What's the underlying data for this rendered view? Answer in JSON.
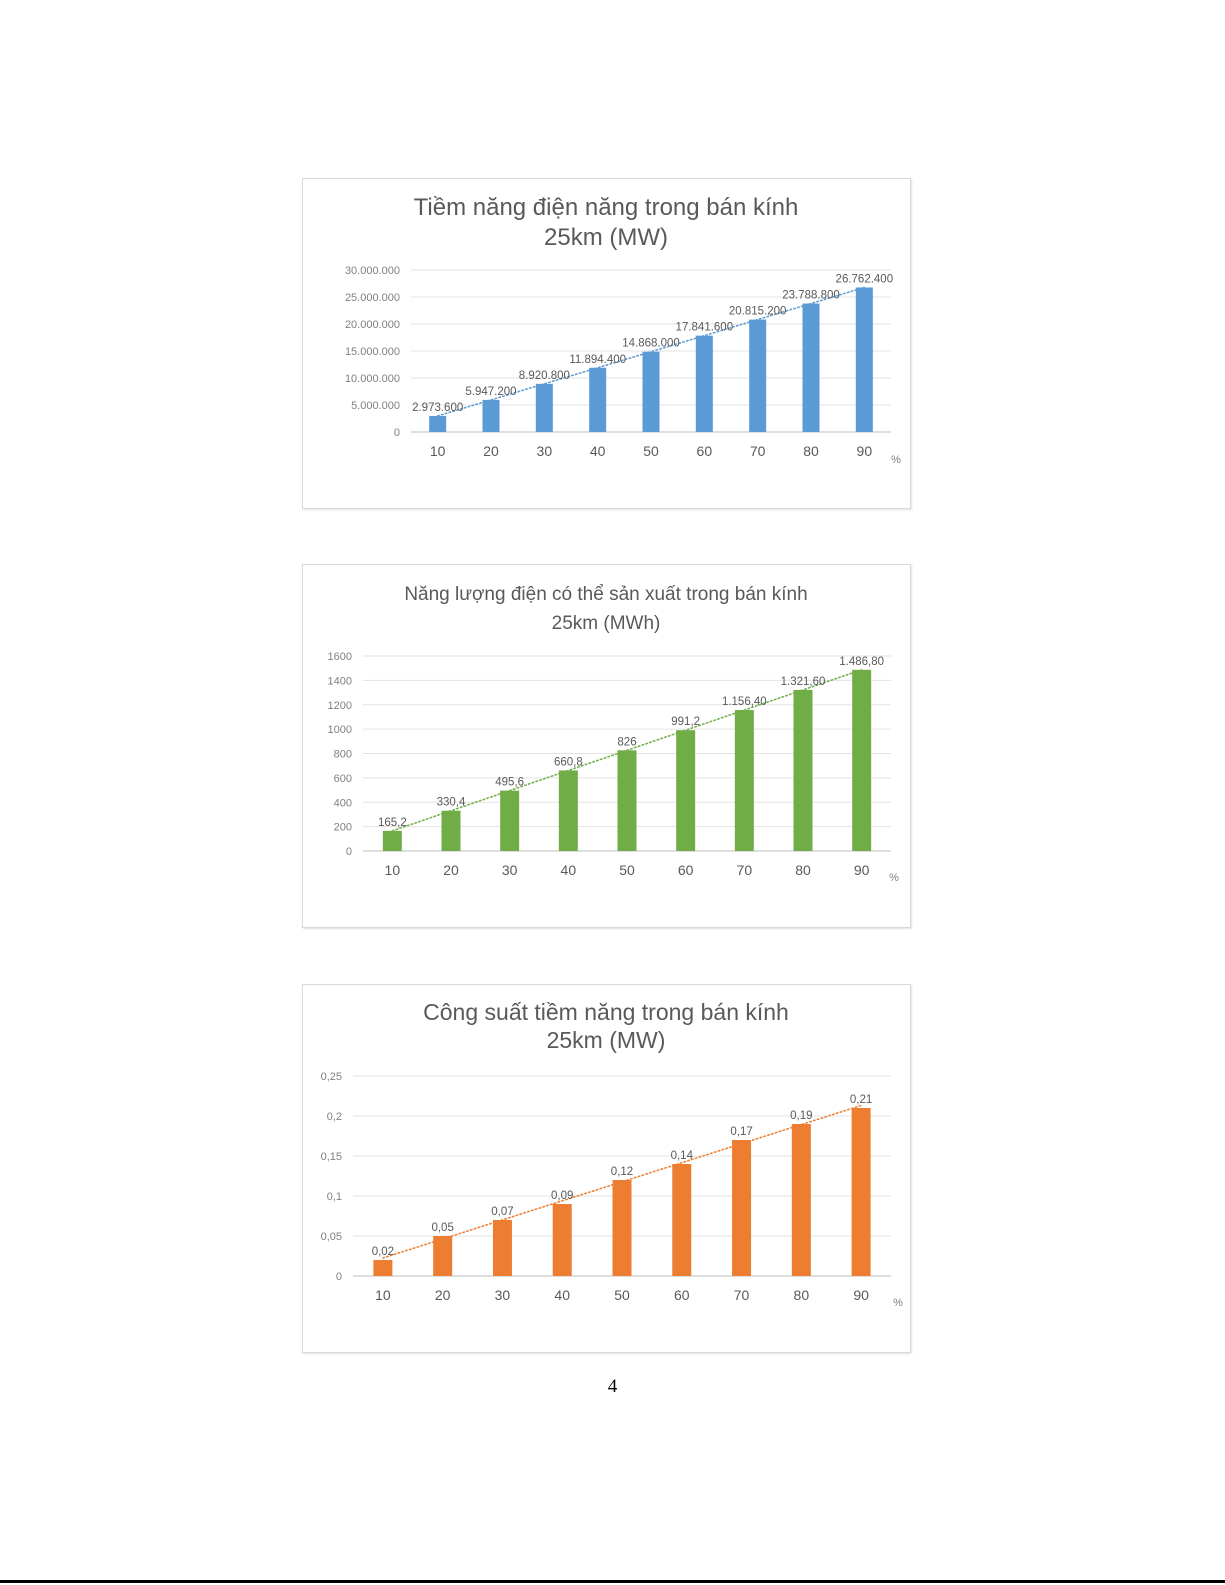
{
  "page_number": "4",
  "chart_data": [
    {
      "type": "bar",
      "title_lines": [
        "Tiềm năng điện năng  trong bán kính",
        "25km (MW)"
      ],
      "xlabel": "%",
      "categories": [
        "10",
        "20",
        "30",
        "40",
        "50",
        "60",
        "70",
        "80",
        "90"
      ],
      "values": [
        2973600,
        5947200,
        8920800,
        11894400,
        14868000,
        17841600,
        20815200,
        23788800,
        26762400
      ],
      "data_labels": [
        "2.973.600",
        "5.947.200",
        "8.920.800",
        "11.894.400",
        "14.868.000",
        "17.841.600",
        "20.815.200",
        "23.788.800",
        "26.762.400"
      ],
      "ylim": [
        0,
        30000000
      ],
      "yticks": [
        0,
        5000000,
        10000000,
        15000000,
        20000000,
        25000000,
        30000000
      ],
      "ytick_labels": [
        "0",
        "5.000.000",
        "10.000.000",
        "15.000.000",
        "20.000.000",
        "25.000.000",
        "30.000.000"
      ],
      "color": "#5b9bd5",
      "trendline": "linear",
      "grid": true
    },
    {
      "type": "bar",
      "title_lines": [
        "Năng lượng điện có thể sản xuất trong bán kính",
        "25km (MWh)"
      ],
      "xlabel": "%",
      "categories": [
        "10",
        "20",
        "30",
        "40",
        "50",
        "60",
        "70",
        "80",
        "90"
      ],
      "values": [
        165.2,
        330.4,
        495.6,
        660.8,
        826,
        991.2,
        1156.4,
        1321.6,
        1486.8
      ],
      "data_labels": [
        "165,2",
        "330,4",
        "495,6",
        "660,8",
        "826",
        "991,2",
        "1.156,40",
        "1.321,60",
        "1.486,80"
      ],
      "ylim": [
        0,
        1600
      ],
      "yticks": [
        0,
        200,
        400,
        600,
        800,
        1000,
        1200,
        1400,
        1600
      ],
      "ytick_labels": [
        "0",
        "200",
        "400",
        "600",
        "800",
        "1000",
        "1200",
        "1400",
        "1600"
      ],
      "color": "#70ad47",
      "trendline": "linear",
      "grid": true
    },
    {
      "type": "bar",
      "title_lines": [
        "Công suất tiềm năng trong bán kính",
        "25km (MW)"
      ],
      "xlabel": "%",
      "categories": [
        "10",
        "20",
        "30",
        "40",
        "50",
        "60",
        "70",
        "80",
        "90"
      ],
      "values": [
        0.02,
        0.05,
        0.07,
        0.09,
        0.12,
        0.14,
        0.17,
        0.19,
        0.21
      ],
      "data_labels": [
        "0,02",
        "0,05",
        "0,07",
        "0,09",
        "0,12",
        "0,14",
        "0,17",
        "0,19",
        "0,21"
      ],
      "ylim": [
        0,
        0.25
      ],
      "yticks": [
        0,
        0.05,
        0.1,
        0.15,
        0.2,
        0.25
      ],
      "ytick_labels": [
        "0",
        "0,05",
        "0,1",
        "0,15",
        "0,2",
        "0,25"
      ],
      "color": "#ed7d31",
      "trendline": "linear",
      "grid": true
    }
  ]
}
